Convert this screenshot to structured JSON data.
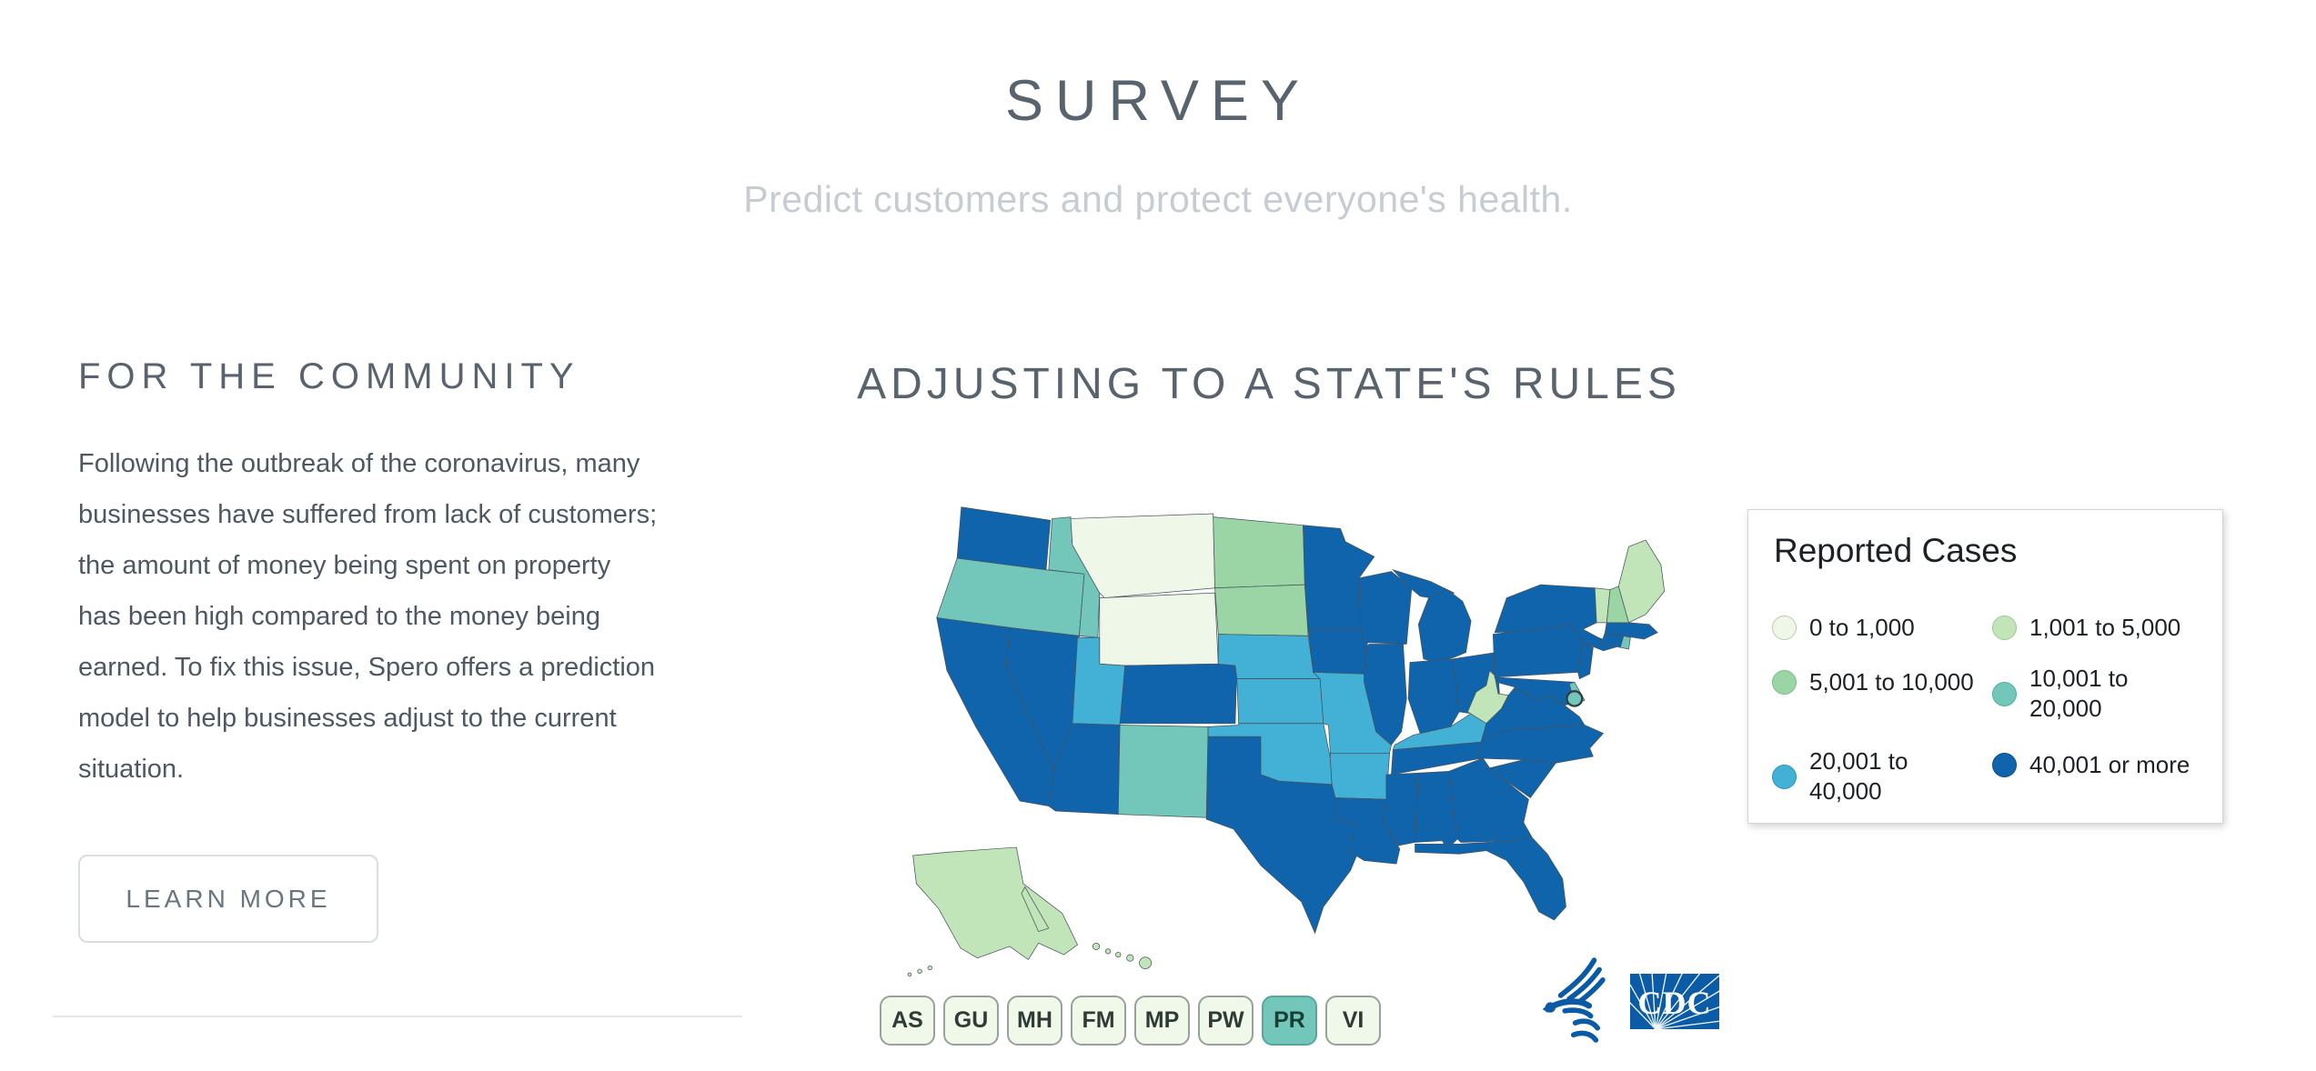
{
  "page": {
    "title": "SURVEY",
    "subtitle": "Predict customers and protect everyone's health."
  },
  "community": {
    "heading": "FOR THE COMMUNITY",
    "lines": [
      "Following the outbreak of the coronavirus, many",
      "businesses have suffered from lack of customers;",
      "the amount of money being spent on property",
      "has been high compared to the money being",
      "earned. To fix this issue, Spero offers a prediction",
      "model to help businesses adjust to the current",
      "situation."
    ],
    "learn_more_label": "LEARN MORE"
  },
  "map_section": {
    "heading": "ADJUSTING TO A STATE'S RULES",
    "legend_title": "Reported Cases",
    "cdc_logo_text": "CDC"
  },
  "chart_data": {
    "type": "choropleth",
    "title": "Reported Cases",
    "legend_position": "right",
    "bins": [
      {
        "id": "b1",
        "label": "0 to 1,000",
        "fill": "#eff8e8",
        "stroke": "#b7cbb0"
      },
      {
        "id": "b2",
        "label": "1,001 to 5,000",
        "fill": "#c1e5b9",
        "stroke": "#99cc90"
      },
      {
        "id": "b3",
        "label": "5,001 to 10,000",
        "fill": "#9bd4a5",
        "stroke": "#76bf85"
      },
      {
        "id": "b4",
        "label": "10,001 to\n20,000",
        "fill": "#72c7ba",
        "stroke": "#50ae9f"
      },
      {
        "id": "b5",
        "label": "20,001 to\n40,000",
        "fill": "#43b1d5",
        "stroke": "#2b95ba"
      },
      {
        "id": "b6",
        "label": "40,001 or more",
        "fill": "#1064ac",
        "stroke": "#0a4f8d"
      }
    ],
    "states": {
      "WA": "b6",
      "OR": "b4",
      "CA": "b6",
      "NV": "b6",
      "ID": "b4",
      "MT": "b1",
      "WY": "b1",
      "UT": "b5",
      "CO": "b6",
      "AZ": "b6",
      "NM": "b4",
      "ND": "b3",
      "SD": "b3",
      "NE": "b5",
      "KS": "b5",
      "OK": "b5",
      "TX": "b6",
      "MN": "b6",
      "IA": "b6",
      "MO": "b5",
      "AR": "b5",
      "LA": "b6",
      "WI": "b6",
      "IL": "b6",
      "MI": "b6",
      "IN": "b6",
      "OH": "b6",
      "KY": "b5",
      "TN": "b6",
      "MS": "b6",
      "AL": "b6",
      "GA": "b6",
      "FL": "b6",
      "SC": "b6",
      "NC": "b6",
      "VA": "b6",
      "WV": "b2",
      "MD": "b6",
      "DE": "b4",
      "PA": "b6",
      "NJ": "b6",
      "NY": "b6",
      "CT": "b6",
      "RI": "b4",
      "MA": "b6",
      "VT": "b2",
      "NH": "b3",
      "ME": "b2",
      "AK": "b2",
      "HI": "b2",
      "DC": "b4"
    },
    "territories": [
      {
        "code": "AS",
        "bin": "b1"
      },
      {
        "code": "GU",
        "bin": "b1"
      },
      {
        "code": "MH",
        "bin": "b1"
      },
      {
        "code": "FM",
        "bin": "b1"
      },
      {
        "code": "MP",
        "bin": "b1"
      },
      {
        "code": "PW",
        "bin": "b1"
      },
      {
        "code": "PR",
        "bin": "b4"
      },
      {
        "code": "VI",
        "bin": "b1"
      }
    ]
  }
}
